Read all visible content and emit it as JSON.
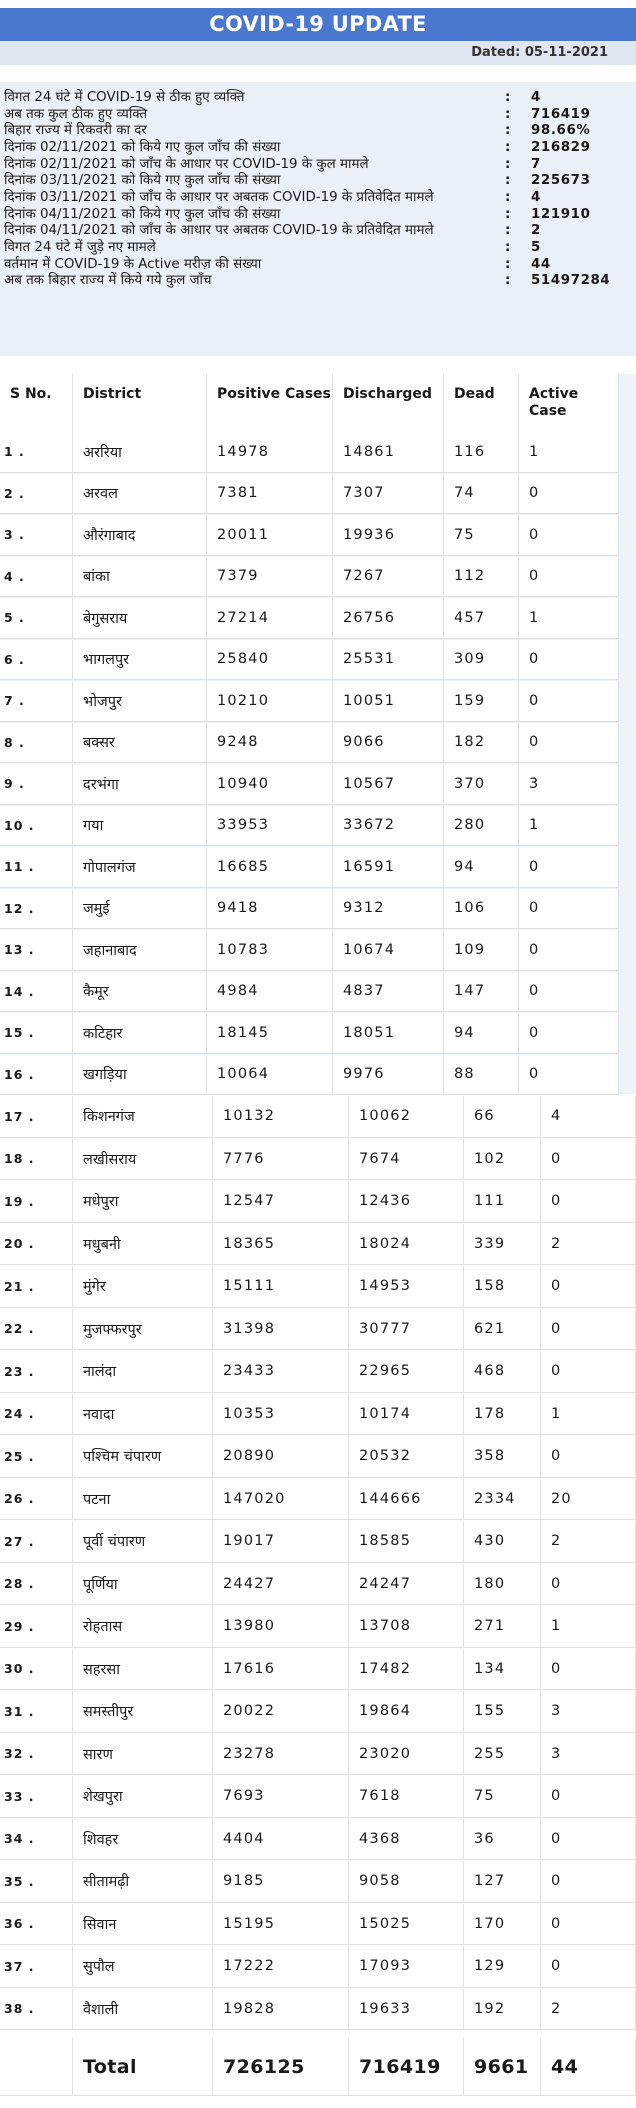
{
  "title": "COVID-19 UPDATE",
  "dated": "Dated:  05-11-2021",
  "summary": [
    {
      "label": "विगत 24 घंटे में COVID-19 से ठीक हुए व्यक्ति",
      "value": "4"
    },
    {
      "label": "अब तक कुल ठीक हुए व्यक्ति",
      "value": "716419"
    },
    {
      "label": "बिहार राज्य में रिकवरी का दर",
      "value": "98.66%"
    },
    {
      "label": "दिनांक 02/11/2021 को किये गए कुल जाँच की संख्या",
      "value": "216829"
    },
    {
      "label": "दिनांक 02/11/2021 को जाँच के आधार पर COVID-19 के कुल मामले",
      "value": "7"
    },
    {
      "label": "दिनांक 03/11/2021 को किये गए कुल जाँच की संख्या",
      "value": "225673"
    },
    {
      "label": "दिनांक 03/11/2021 को जाँच के आधार पर अबतक COVID-19 के प्रतिवेदित मामले",
      "value": "4"
    },
    {
      "label": "दिनांक 04/11/2021 को किये गए कुल जाँच की संख्या",
      "value": "121910"
    },
    {
      "label": "दिनांक 04/11/2021 को जाँच के आधार पर अबतक COVID-19 के प्रतिवेदित मामले",
      "value": "2"
    },
    {
      "label": "विगत 24 घंटे में जुड़े नए मामले",
      "value": "5"
    },
    {
      "label": "वर्तमान में COVID-19 के Active मरीज़ की संख्या",
      "value": "44"
    },
    {
      "label": "अब तक बिहार राज्य में किये गये कुल जाँच",
      "value": "51497284"
    }
  ],
  "summary_colon": ":",
  "table": {
    "headers": [
      "S No.",
      "District",
      "Positive Cases",
      "Discharged",
      "Dead",
      "Active Case"
    ],
    "rows": [
      [
        "1 .",
        "अररिया",
        "14978",
        "14861",
        "116",
        "1"
      ],
      [
        "2 .",
        "अरवल",
        "7381",
        "7307",
        "74",
        "0"
      ],
      [
        "3 .",
        "औरंगाबाद",
        "20011",
        "19936",
        "75",
        "0"
      ],
      [
        "4 .",
        "बांका",
        "7379",
        "7267",
        "112",
        "0"
      ],
      [
        "5 .",
        "बेगुसराय",
        "27214",
        "26756",
        "457",
        "1"
      ],
      [
        "6 .",
        "भागलपुर",
        "25840",
        "25531",
        "309",
        "0"
      ],
      [
        "7 .",
        "भोजपुर",
        "10210",
        "10051",
        "159",
        "0"
      ],
      [
        "8 .",
        "बक्सर",
        "9248",
        "9066",
        "182",
        "0"
      ],
      [
        "9 .",
        "दरभंगा",
        "10940",
        "10567",
        "370",
        "3"
      ],
      [
        "10 .",
        "गया",
        "33953",
        "33672",
        "280",
        "1"
      ],
      [
        "11 .",
        "गोपालगंज",
        "16685",
        "16591",
        "94",
        "0"
      ],
      [
        "12 .",
        "जमुई",
        "9418",
        "9312",
        "106",
        "0"
      ],
      [
        "13 .",
        "जहानाबाद",
        "10783",
        "10674",
        "109",
        "0"
      ],
      [
        "14 .",
        "कैमूर",
        "4984",
        "4837",
        "147",
        "0"
      ],
      [
        "15 .",
        "कटिहार",
        "18145",
        "18051",
        "94",
        "0"
      ],
      [
        "16 .",
        "खगड़िया",
        "10064",
        "9976",
        "88",
        "0"
      ],
      [
        "17 .",
        "किशनगंज",
        "10132",
        "10062",
        "66",
        "4"
      ],
      [
        "18 .",
        "लखीसराय",
        "7776",
        "7674",
        "102",
        "0"
      ],
      [
        "19 .",
        "मधेपुरा",
        "12547",
        "12436",
        "111",
        "0"
      ],
      [
        "20 .",
        "मधुबनी",
        "18365",
        "18024",
        "339",
        "2"
      ],
      [
        "21 .",
        "मुंगेर",
        "15111",
        "14953",
        "158",
        "0"
      ],
      [
        "22 .",
        "मुजफ्फरपुर",
        "31398",
        "30777",
        "621",
        "0"
      ],
      [
        "23 .",
        "नालंदा",
        "23433",
        "22965",
        "468",
        "0"
      ],
      [
        "24 .",
        "नवादा",
        "10353",
        "10174",
        "178",
        "1"
      ],
      [
        "25 .",
        "पश्चिम चंपारण",
        "20890",
        "20532",
        "358",
        "0"
      ],
      [
        "26 .",
        "पटना",
        "147020",
        "144666",
        "2334",
        "20"
      ],
      [
        "27 .",
        "पूर्वी चंपारण",
        "19017",
        "18585",
        "430",
        "2"
      ],
      [
        "28 .",
        "पूर्णिया",
        "24427",
        "24247",
        "180",
        "0"
      ],
      [
        "29 .",
        "रोहतास",
        "13980",
        "13708",
        "271",
        "1"
      ],
      [
        "30 .",
        "सहरसा",
        "17616",
        "17482",
        "134",
        "0"
      ],
      [
        "31 .",
        "समस्तीपुर",
        "20022",
        "19864",
        "155",
        "3"
      ],
      [
        "32 .",
        "सारण",
        "23278",
        "23020",
        "255",
        "3"
      ],
      [
        "33 .",
        "शेखपुरा",
        "7693",
        "7618",
        "75",
        "0"
      ],
      [
        "34 .",
        "शिवहर",
        "4404",
        "4368",
        "36",
        "0"
      ],
      [
        "35 .",
        "सीतामढ़ी",
        "9185",
        "9058",
        "127",
        "0"
      ],
      [
        "36 .",
        "सिवान",
        "15195",
        "15025",
        "170",
        "0"
      ],
      [
        "37 .",
        "सुपौल",
        "17222",
        "17093",
        "129",
        "0"
      ],
      [
        "38 .",
        "वैशाली",
        "19828",
        "19633",
        "192",
        "2"
      ]
    ],
    "total": [
      "",
      "Total",
      "726125",
      "716419",
      "9661",
      "44"
    ]
  },
  "colors": {
    "header_bg": "#4a78cf",
    "summary_bg": "#e9f0f7",
    "table_bg": "#eef3f8"
  }
}
